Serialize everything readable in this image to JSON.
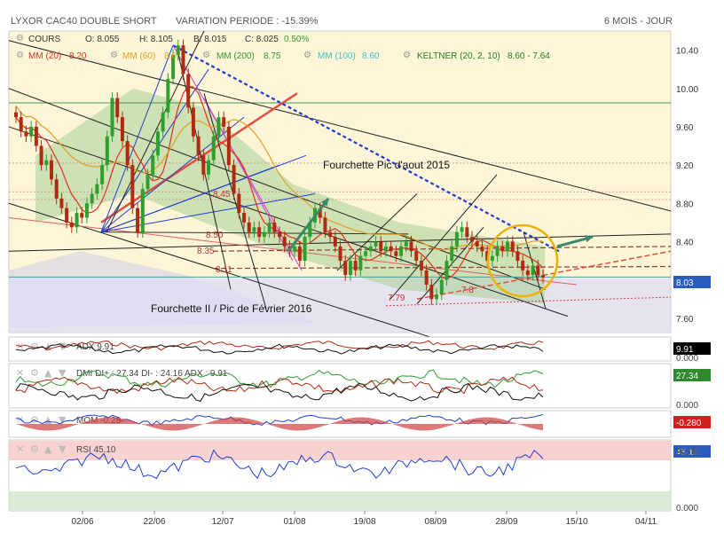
{
  "header": {
    "instrument": "LYXOR CAC40 DOUBLE SHORT",
    "variation": "VARIATION PERIODE : -15.39%",
    "period": "6 MOIS - JOUR"
  },
  "legend": {
    "cours_label": "COURS",
    "open": "O: 8.055",
    "high": "H: 8.105",
    "low": "B: 8.015",
    "close": "C: 8.025",
    "change": "0.50%",
    "mm20": "MM (20)",
    "mm20_val": "8.20",
    "mm60": "MM (60)",
    "mm60_val": "8.6",
    "mm200": "MM (200)",
    "mm200_val": "8.75",
    "mm100": "MM (100)",
    "mm100_val": "8.60",
    "keltner": "KELTNER (20, 2, 10)",
    "keltner_val": "8.60 - 7.64"
  },
  "annotations": {
    "fourchette_aout": "Fourchette Pic d'aout 2015",
    "fourchette_fev": "Fourchette II / Pic de Février 2016",
    "lvl_850": "8.50",
    "lvl_835": "8.35",
    "lvl_811": "8.11",
    "lvl_845": "8.45",
    "lvl_779": "7.79",
    "lvl_780": "7.8"
  },
  "colors": {
    "mm20": "#e03020",
    "mm60": "#e0a020",
    "mm200": "#2e9a2e",
    "mm100": "#40c0c0",
    "keltner": "#208020",
    "up": "#2ea02e",
    "down": "#b02a10",
    "price_tag": "#2a5cc0",
    "accent_circle": "#f0b000",
    "arrow": "#3a8a6a"
  },
  "chart_data": {
    "type": "candlestick",
    "title": "LYXOR CAC40 DOUBLE SHORT",
    "x_ticks": [
      "02/06",
      "22/06",
      "12/07",
      "01/08",
      "19/08",
      "08/09",
      "28/09",
      "15/10",
      "04/11"
    ],
    "y_ticks": [
      "10.40",
      "10.00",
      "9.60",
      "9.20",
      "8.80",
      "8.40",
      "8.00",
      "7.60"
    ],
    "ylim": [
      7.45,
      10.6
    ],
    "last_price": "8.03",
    "closes": [
      9.7,
      9.55,
      9.5,
      9.6,
      9.4,
      9.2,
      9.25,
      9.05,
      8.85,
      8.75,
      8.6,
      8.55,
      8.7,
      8.65,
      8.8,
      8.9,
      9.0,
      9.2,
      9.5,
      9.9,
      9.7,
      9.45,
      9.2,
      8.75,
      8.5,
      8.95,
      9.1,
      9.3,
      9.55,
      9.75,
      10.1,
      10.35,
      10.45,
      10.15,
      9.8,
      9.5,
      9.3,
      9.1,
      9.25,
      9.5,
      9.7,
      9.6,
      9.2,
      8.9,
      8.7,
      8.6,
      8.5,
      8.55,
      8.45,
      8.5,
      8.6,
      8.5,
      8.45,
      8.35,
      8.3,
      8.35,
      8.2,
      8.45,
      8.6,
      8.75,
      8.65,
      8.5,
      8.45,
      8.35,
      8.2,
      8.05,
      8.2,
      8.1,
      8.25,
      8.3,
      8.35,
      8.4,
      8.3,
      8.35,
      8.3,
      8.25,
      8.35,
      8.4,
      8.3,
      8.2,
      8.1,
      7.95,
      7.8,
      7.85,
      8.0,
      8.2,
      8.35,
      8.5,
      8.55,
      8.45,
      8.4,
      8.35,
      8.3,
      8.2,
      8.25,
      8.35,
      8.3,
      8.4,
      8.3,
      8.2,
      8.1,
      8.05,
      8.15,
      8.05,
      8.025
    ],
    "indicators": [
      {
        "name": "ADX",
        "label": "ADX 9.91",
        "value": "9.91",
        "axis": [
          "0.000"
        ]
      },
      {
        "name": "DMI",
        "label": "DMI DI+ : 27.34 DI- : 24.16 ADX : 9.91",
        "value": "27.34",
        "axis": [
          "0.000"
        ]
      },
      {
        "name": "MOM",
        "label": "MOM -0.28",
        "value": "-0.280",
        "axis": []
      },
      {
        "name": "RSI",
        "label": "RSI 45.10",
        "value": "45.10",
        "axis": [
          "80.00",
          "0.000"
        ]
      }
    ]
  }
}
